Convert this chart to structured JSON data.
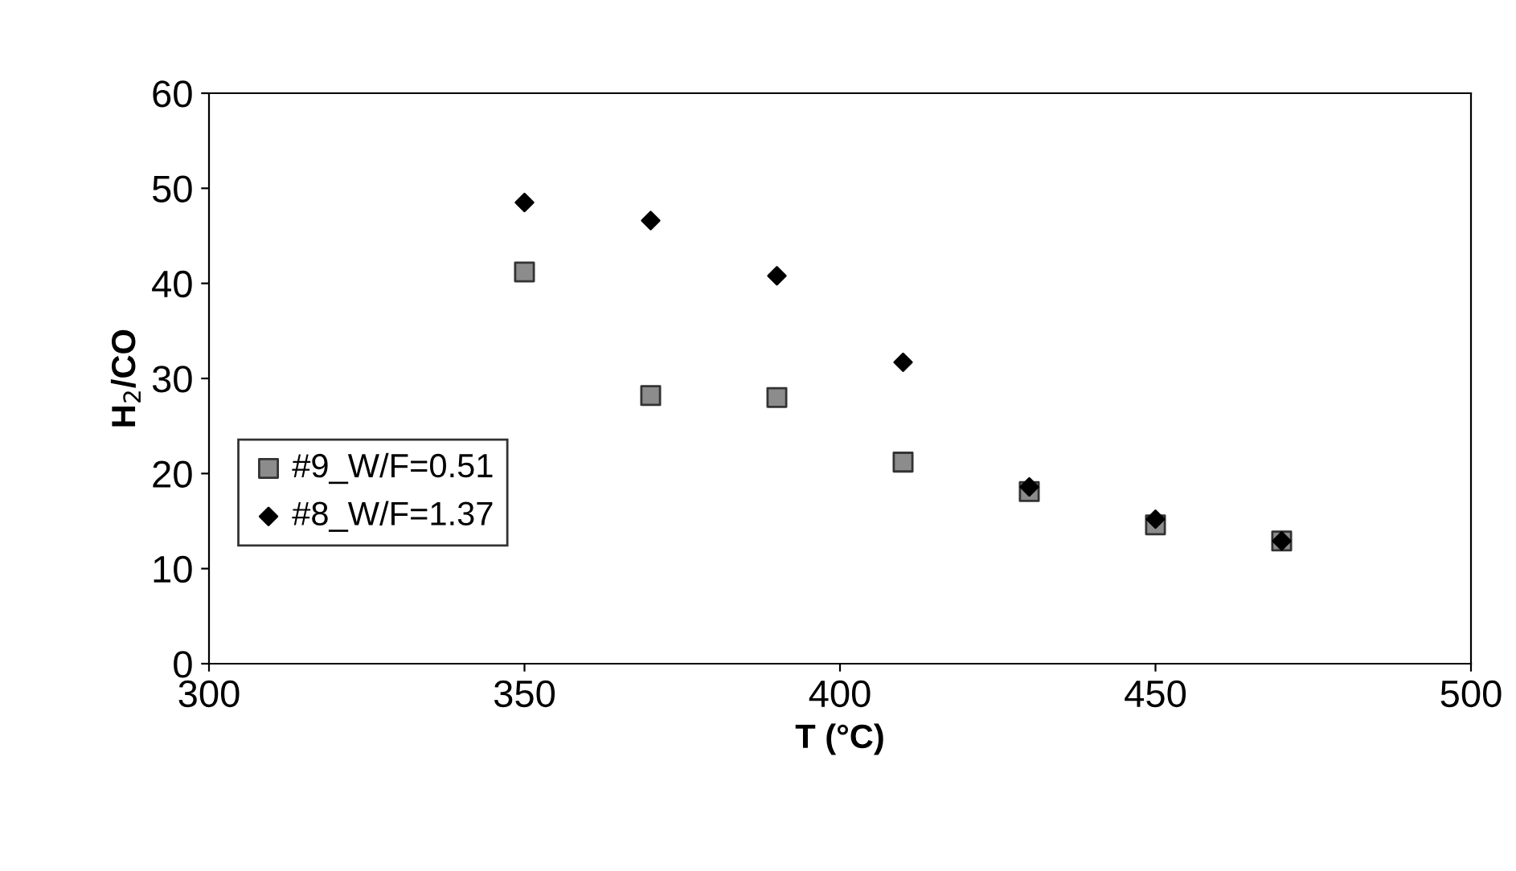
{
  "chart_data": {
    "type": "scatter",
    "xlabel": "T (°C)",
    "ylabel": "H$_{2}$/CO",
    "x": [
      350,
      370,
      390,
      410,
      430,
      450,
      470
    ],
    "series": [
      {
        "name": "#9_W/F=0.51",
        "color": "#8c8c8c",
        "marker": "square",
        "values": [
          41.2,
          28.2,
          28.0,
          21.2,
          18.1,
          14.6,
          12.9
        ]
      },
      {
        "name": "#8_W/F=1.37",
        "color": "#000000",
        "marker": "diamond",
        "values": [
          48.5,
          46.6,
          40.8,
          31.7,
          18.6,
          15.2,
          12.9
        ]
      }
    ],
    "xlim": [
      300,
      500
    ],
    "xticks": [
      300,
      350,
      400,
      450,
      500
    ],
    "ylim": [
      0,
      60
    ],
    "yticks": [
      0,
      10,
      20,
      30,
      40,
      50,
      60
    ],
    "grid": false,
    "legend": "left"
  }
}
